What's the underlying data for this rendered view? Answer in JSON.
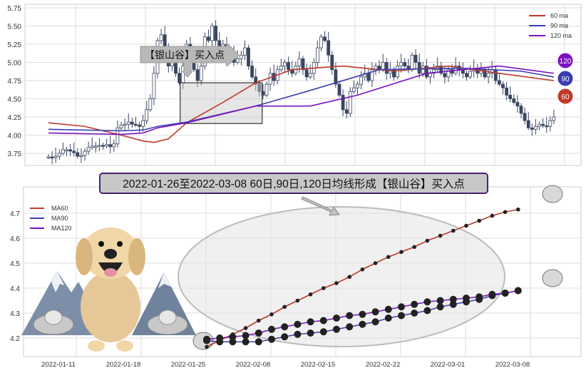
{
  "chart_data": [
    {
      "type": "candlestick",
      "title": "",
      "ylim": [
        3.6,
        5.78
      ],
      "yticks": [
        "3.75",
        "4.00",
        "4.25",
        "4.50",
        "4.75",
        "5.00",
        "5.25",
        "5.50",
        "5.75"
      ],
      "close": [
        3.7,
        3.69,
        3.71,
        3.75,
        3.8,
        3.8,
        3.78,
        3.76,
        3.71,
        3.72,
        3.78,
        3.83,
        3.85,
        3.85,
        3.86,
        3.85,
        3.87,
        3.84,
        3.88,
        4.1,
        4.14,
        4.15,
        4.18,
        4.15,
        4.14,
        4.12,
        4.2,
        4.35,
        4.5,
        4.85,
        5.3,
        5.38,
        5.2,
        4.95,
        5.1,
        4.85,
        4.72,
        4.95,
        5.25,
        5.1,
        4.9,
        4.75,
        4.95,
        5.35,
        5.3,
        5.5,
        5.3,
        5.1,
        5.25,
        5.05,
        5.15,
        5.0,
        5.05,
        5.1,
        5.2,
        4.95,
        4.8,
        4.7,
        4.6,
        4.55,
        4.7,
        4.85,
        4.75,
        4.9,
        4.95,
        5.0,
        4.9,
        4.85,
        4.95,
        5.05,
        4.9,
        4.8,
        4.85,
        5.0,
        5.2,
        5.35,
        5.3,
        5.1,
        4.9,
        4.7,
        4.55,
        4.35,
        4.3,
        4.6,
        4.65,
        4.7,
        4.8,
        4.85,
        4.75,
        4.9,
        4.95,
        4.9,
        5.0,
        4.85,
        4.9,
        4.8,
        4.95,
        5.0,
        4.95,
        4.9,
        5.1,
        5.0,
        4.85,
        4.95,
        4.8,
        4.85,
        4.9,
        4.95,
        4.85,
        4.8,
        4.9,
        4.85,
        4.95,
        4.9,
        4.85,
        4.8,
        4.88,
        4.92,
        4.85,
        4.9,
        4.8,
        4.85,
        4.9,
        4.75,
        4.7,
        4.65,
        4.55,
        4.5,
        4.45,
        4.4,
        4.3,
        4.2,
        4.1,
        4.08,
        4.12,
        4.15,
        4.13,
        4.12,
        4.2,
        4.25
      ],
      "series": [
        {
          "name": "60 ma",
          "color": "#c0392b",
          "points": [
            [
              0,
              4.17
            ],
            [
              10,
              4.12
            ],
            [
              20,
              4.0
            ],
            [
              26,
              3.92
            ],
            [
              29,
              3.9
            ],
            [
              33,
              3.95
            ],
            [
              38,
              4.17
            ],
            [
              48,
              4.45
            ],
            [
              57,
              4.72
            ],
            [
              67,
              4.9
            ],
            [
              81,
              4.95
            ],
            [
              95,
              4.88
            ],
            [
              110,
              4.95
            ],
            [
              124,
              4.85
            ],
            [
              139,
              4.75
            ]
          ]
        },
        {
          "name": "90 ma",
          "color": "#3a3fb0",
          "points": [
            [
              0,
              4.08
            ],
            [
              20,
              4.06
            ],
            [
              26,
              4.07
            ],
            [
              30,
              4.12
            ],
            [
              38,
              4.18
            ],
            [
              57,
              4.4
            ],
            [
              71,
              4.6
            ],
            [
              91,
              4.9
            ],
            [
              114,
              4.92
            ],
            [
              130,
              4.88
            ],
            [
              139,
              4.8
            ]
          ]
        },
        {
          "name": "120 ma",
          "color": "#7b12c0",
          "points": [
            [
              0,
              4.03
            ],
            [
              20,
              4.01
            ],
            [
              26,
              4.03
            ],
            [
              30,
              4.1
            ],
            [
              38,
              4.17
            ],
            [
              57,
              4.4
            ],
            [
              72,
              4.4
            ],
            [
              85,
              4.55
            ],
            [
              104,
              4.85
            ],
            [
              124,
              4.95
            ],
            [
              139,
              4.85
            ]
          ]
        }
      ],
      "highlight_range": {
        "start_index": 37,
        "end_index": 58,
        "low": 4.16,
        "high": 4.72
      },
      "annotation": "【银山谷】买入点",
      "badges": [
        {
          "label": "120",
          "color": "#7b12c0"
        },
        {
          "label": "90",
          "color": "#3a3fb0"
        },
        {
          "label": "60",
          "color": "#c0392b"
        }
      ]
    },
    {
      "type": "line",
      "title": "2022-01-26至2022-03-08 60日,90日,120日均线形成【银山谷】买入点",
      "ylim": [
        4.12,
        4.77
      ],
      "yticks": [
        "4.2",
        "4.3",
        "4.4",
        "4.5",
        "4.6",
        "4.7"
      ],
      "xticks": [
        "2022-01-11",
        "2022-01-18",
        "2022-01-25",
        "2022-02-08",
        "2022-02-15",
        "2022-02-22",
        "2022-03-01",
        "2022-03-08"
      ],
      "legend": "top-left",
      "series": [
        {
          "name": "MA60",
          "color": "#c0392b",
          "values": [
            4.165,
            4.19,
            4.215,
            4.24,
            4.27,
            4.295,
            4.325,
            4.35,
            4.375,
            4.4,
            4.42,
            4.445,
            4.475,
            4.5,
            4.525,
            4.545,
            4.565,
            4.59,
            4.61,
            4.63,
            4.65,
            4.67,
            4.69,
            4.705,
            4.715
          ]
        },
        {
          "name": "MA90",
          "color": "#3a3fb0",
          "values": [
            4.19,
            4.185,
            4.185,
            4.185,
            4.185,
            4.195,
            4.205,
            4.215,
            4.22,
            4.225,
            4.235,
            4.245,
            4.255,
            4.265,
            4.28,
            4.29,
            4.3,
            4.31,
            4.325,
            4.335,
            4.345,
            4.355,
            4.37,
            4.38,
            4.39
          ]
        },
        {
          "name": "MA120",
          "color": "#7b12c0",
          "values": [
            4.195,
            4.2,
            4.205,
            4.21,
            4.22,
            4.235,
            4.245,
            4.255,
            4.265,
            4.27,
            4.28,
            4.29,
            4.295,
            4.305,
            4.315,
            4.325,
            4.335,
            4.345,
            4.35,
            4.355,
            4.36,
            4.365,
            4.375,
            4.38,
            4.39
          ]
        }
      ]
    }
  ]
}
